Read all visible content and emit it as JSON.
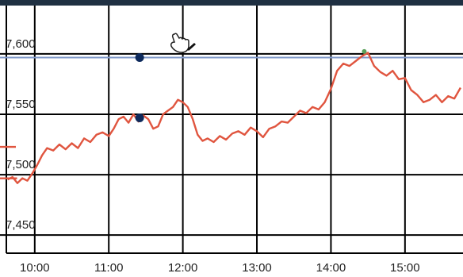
{
  "chart_data": {
    "type": "line",
    "title": "",
    "xlabel": "",
    "ylabel": "",
    "x_ticks": [
      "10:00",
      "11:00",
      "12:00",
      "13:00",
      "14:00",
      "15:00"
    ],
    "y_ticks": [
      "7,450",
      "7,500",
      "7,550",
      "7,600"
    ],
    "xlim": [
      "09:37",
      "15:47"
    ],
    "ylim": [
      7435,
      7640
    ],
    "grid": true,
    "series": [
      {
        "x": [
          "09:38",
          "09:42",
          "09:46",
          "09:50",
          "09:54",
          "09:58",
          "10:02",
          "10:06",
          "10:10",
          "10:15",
          "10:20",
          "10:25",
          "10:30",
          "10:35",
          "10:40",
          "10:45",
          "10:50",
          "10:55",
          "11:00",
          "11:04",
          "11:08",
          "11:12",
          "11:16",
          "11:20",
          "11:24",
          "11:28",
          "11:32",
          "11:36",
          "11:40",
          "11:44",
          "11:48",
          "11:52",
          "11:56",
          "12:00",
          "12:04",
          "12:08",
          "12:12",
          "12:16",
          "12:20",
          "12:25",
          "12:30",
          "12:35",
          "12:40",
          "12:45",
          "12:50",
          "12:55",
          "13:00",
          "13:05",
          "13:10",
          "13:15",
          "13:20",
          "13:25",
          "13:30",
          "13:35",
          "13:40",
          "13:45",
          "13:50",
          "13:55",
          "14:00",
          "14:05",
          "14:10",
          "14:15",
          "14:20",
          "14:25",
          "14:30",
          "14:35",
          "14:40",
          "14:45",
          "14:50",
          "14:55",
          "15:00",
          "15:05",
          "15:10",
          "15:15",
          "15:20",
          "15:25",
          "15:30",
          "15:35",
          "15:40",
          "15:45"
        ],
        "values": [
          7496,
          7498,
          7493,
          7497,
          7495,
          7501,
          7508,
          7516,
          7522,
          7520,
          7525,
          7521,
          7526,
          7522,
          7530,
          7527,
          7533,
          7535,
          7532,
          7538,
          7546,
          7548,
          7543,
          7550,
          7544,
          7549,
          7546,
          7538,
          7540,
          7550,
          7553,
          7556,
          7562,
          7560,
          7556,
          7546,
          7533,
          7528,
          7530,
          7527,
          7532,
          7529,
          7534,
          7536,
          7533,
          7539,
          7536,
          7531,
          7538,
          7540,
          7544,
          7543,
          7548,
          7553,
          7551,
          7556,
          7554,
          7560,
          7571,
          7586,
          7592,
          7590,
          7594,
          7598,
          7601,
          7590,
          7585,
          7582,
          7586,
          7579,
          7580,
          7570,
          7566,
          7560,
          7562,
          7566,
          7560,
          7565,
          7563,
          7572
        ]
      }
    ],
    "extra_series": [
      {
        "x": [
          "09:37"
        ],
        "values": [
          7523
        ]
      },
      {
        "x": [
          "09:38"
        ],
        "values": [
          7497
        ]
      }
    ],
    "reference_line": {
      "y": 7597
    },
    "markers": [
      {
        "x": "11:25",
        "y": 7597
      },
      {
        "x": "11:25",
        "y": 7547
      }
    ],
    "peak_marker": {
      "x": "14:27",
      "y": 7602
    },
    "colors": {
      "line": "#e0553f",
      "reference": "#7f98c9",
      "marker": "#0e2a5c",
      "peak": "#5aa05a",
      "grid": "#000000",
      "topbar": "#1f3042"
    },
    "icons": [
      "pointer-hand-icon"
    ]
  }
}
